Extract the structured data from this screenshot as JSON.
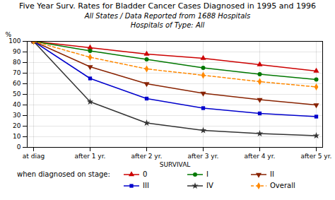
{
  "chart_data": {
    "type": "line",
    "title": "Five Year Surv. Rates for Bladder Cancer Cases Diagnosed in 1995 and 1996",
    "subtitle": [
      "All States / Data Reported from 1688 Hospitals",
      "Hospitals of Type: All"
    ],
    "categories": [
      "at diag",
      "after 1 yr.",
      "after 2 yr.",
      "after 3 yr.",
      "after 4 yr.",
      "after 5 yr."
    ],
    "xlabel": "SURVIVAL",
    "ylabel": "%",
    "ylim": [
      0,
      100
    ],
    "yticks": [
      0,
      10,
      20,
      30,
      40,
      50,
      60,
      70,
      80,
      90,
      100
    ],
    "grid": true,
    "legend": "bottom",
    "annotations": [
      "when diagnosed on stage:"
    ],
    "series": [
      {
        "name": "0",
        "color": "#cc0000",
        "marker": "triangle-up",
        "line_style": "solid",
        "values": [
          100,
          94,
          88,
          84,
          78,
          72
        ]
      },
      {
        "name": "I",
        "color": "#007700",
        "marker": "circle",
        "line_style": "solid",
        "values": [
          100,
          91,
          83,
          75,
          69,
          64
        ]
      },
      {
        "name": "II",
        "color": "#882200",
        "marker": "triangle-down",
        "line_style": "solid",
        "values": [
          100,
          76,
          60,
          51,
          45,
          40
        ]
      },
      {
        "name": "III",
        "color": "#0000cc",
        "marker": "square",
        "line_style": "solid",
        "values": [
          100,
          65,
          46,
          37,
          32,
          29
        ]
      },
      {
        "name": "IV",
        "color": "#333333",
        "marker": "star",
        "line_style": "solid",
        "values": [
          100,
          43,
          23,
          16,
          13,
          11
        ]
      },
      {
        "name": "Overall",
        "color": "#ff8800",
        "marker": "diamond",
        "line_style": "dashed",
        "values": [
          100,
          85,
          74,
          68,
          62,
          57
        ]
      }
    ]
  }
}
